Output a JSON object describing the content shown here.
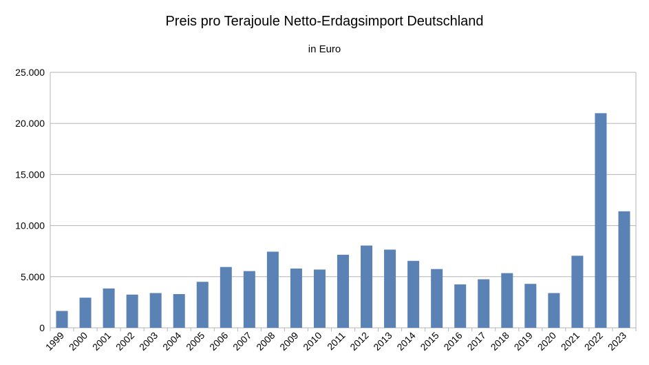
{
  "chart_data": {
    "type": "bar",
    "title": "Preis pro Terajoule Netto-Erdagsimport Deutschland",
    "subtitle": "in Euro",
    "xlabel": "",
    "ylabel": "",
    "ylim": [
      0,
      25000
    ],
    "yticks": [
      0,
      5000,
      10000,
      15000,
      20000,
      25000
    ],
    "ytick_labels": [
      "0",
      "5.000",
      "10.000",
      "15.000",
      "20.000",
      "25.000"
    ],
    "grid": true,
    "legend": "none",
    "bar_color": "#5b82b5",
    "categories": [
      "1999",
      "2000",
      "2001",
      "2002",
      "2003",
      "2004",
      "2005",
      "2006",
      "2007",
      "2008",
      "2009",
      "2010",
      "2011",
      "2012",
      "2013",
      "2014",
      "2015",
      "2016",
      "2017",
      "2018",
      "2019",
      "2020",
      "2021",
      "2022",
      "2023"
    ],
    "values": [
      1650,
      2950,
      3850,
      3250,
      3400,
      3300,
      4500,
      5950,
      5550,
      7450,
      5800,
      5700,
      7150,
      8050,
      7650,
      6550,
      5750,
      4250,
      4750,
      5350,
      4300,
      3400,
      7050,
      21000,
      11400
    ]
  }
}
